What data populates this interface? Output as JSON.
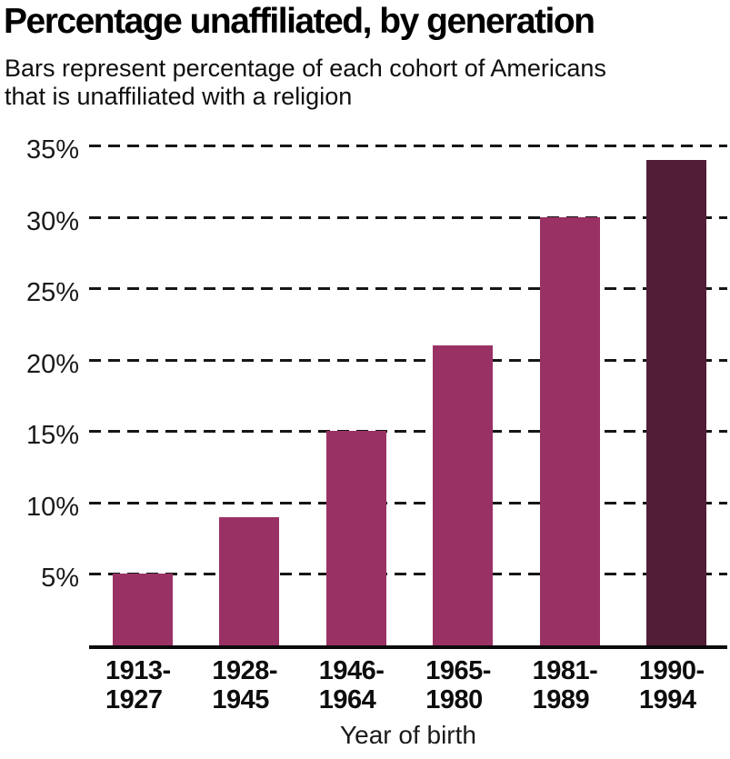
{
  "header": {
    "title": "Percentage unaffiliated, by generation",
    "subtitle_line1": "Bars represent percentage of each cohort of Americans",
    "subtitle_line2": "that is unaffiliated with a religion"
  },
  "chart_data": {
    "type": "bar",
    "title": "Percentage unaffiliated, by generation",
    "subtitle": "Bars represent percentage of each cohort of Americans that is unaffiliated with a religion",
    "categories": [
      "1913-1927",
      "1928-1945",
      "1946-1964",
      "1965-1980",
      "1981-1989",
      "1990-1994"
    ],
    "values": [
      5,
      9,
      15,
      21,
      30,
      34
    ],
    "xlabel": "Year of birth",
    "ylabel": "",
    "ylim": [
      0,
      35
    ],
    "y_ticks": [
      5,
      10,
      15,
      20,
      25,
      30,
      35
    ],
    "y_tick_suffix": "%",
    "grid": "horizontal-dashed",
    "legend": "none",
    "bar_colors": [
      "#9a3164",
      "#9a3164",
      "#9a3164",
      "#9a3164",
      "#9a3164",
      "#521d37"
    ],
    "highlight_index": 5,
    "colors": {
      "bar": "#9a3164",
      "bar_highlight": "#521d37",
      "axis_line": "#0b0b0b",
      "grid_line": "#161616",
      "text": "#1a1a1a",
      "background": "#ffffff"
    }
  }
}
